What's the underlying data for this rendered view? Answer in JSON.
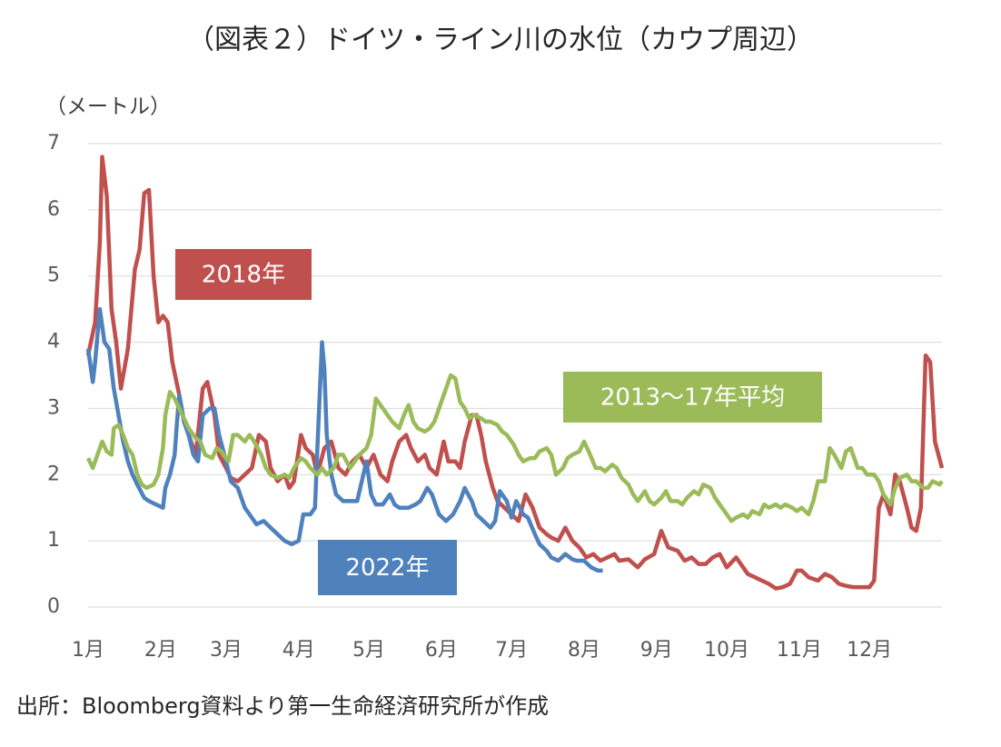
{
  "chart_data": {
    "type": "line",
    "title": "（図表２）ドイツ・ライン川の水位（カウプ周辺）",
    "y_label": "（メートル）",
    "source": "出所：Bloomberg資料より第一生命経済研究所が作成",
    "xlim": [
      1,
      366
    ],
    "xticks": [
      {
        "value": 1,
        "label": "1月"
      },
      {
        "value": 32,
        "label": "2月"
      },
      {
        "value": 60,
        "label": "3月"
      },
      {
        "value": 91,
        "label": "4月"
      },
      {
        "value": 121,
        "label": "5月"
      },
      {
        "value": 152,
        "label": "6月"
      },
      {
        "value": 182,
        "label": "7月"
      },
      {
        "value": 213,
        "label": "8月"
      },
      {
        "value": 244,
        "label": "9月"
      },
      {
        "value": 274,
        "label": "10月"
      },
      {
        "value": 305,
        "label": "11月"
      },
      {
        "value": 335,
        "label": "12月"
      }
    ],
    "ylim": [
      0,
      7
    ],
    "yticks": [
      0,
      1,
      2,
      3,
      4,
      5,
      6,
      7
    ],
    "grid": true,
    "series": [
      {
        "name": "2018年",
        "color": "#c0504d",
        "x": [
          1,
          4,
          6,
          7,
          9,
          11,
          13,
          15,
          18,
          21,
          23,
          25,
          27,
          29,
          31,
          33,
          35,
          37,
          40,
          42,
          45,
          47,
          50,
          52,
          55,
          57,
          60,
          62,
          65,
          68,
          71,
          74,
          77,
          79,
          82,
          85,
          87,
          89,
          92,
          94,
          97,
          99,
          102,
          105,
          108,
          111,
          114,
          117,
          120,
          123,
          126,
          129,
          131,
          134,
          137,
          139,
          142,
          145,
          147,
          150,
          153,
          155,
          158,
          160,
          162,
          165,
          167,
          169,
          171,
          174,
          176,
          179,
          182,
          185,
          188,
          191,
          194,
          197,
          199,
          202,
          205,
          208,
          211,
          214,
          217,
          220,
          223,
          226,
          228,
          232,
          236,
          239,
          243,
          246,
          249,
          253,
          256,
          259,
          262,
          265,
          268,
          271,
          274,
          278,
          280,
          283,
          286,
          289,
          292,
          295,
          298,
          301,
          304,
          306,
          309,
          313,
          316,
          319,
          322,
          325,
          328,
          331,
          335,
          337,
          339,
          341,
          344,
          346,
          348,
          351,
          353,
          355,
          357,
          359,
          361,
          363,
          366
        ],
        "values": [
          3.8,
          4.3,
          5.5,
          6.8,
          6.2,
          4.5,
          4.0,
          3.3,
          3.9,
          5.1,
          5.4,
          6.25,
          6.3,
          5.0,
          4.3,
          4.4,
          4.3,
          3.7,
          3.2,
          2.8,
          2.5,
          2.3,
          3.3,
          3.4,
          2.9,
          2.3,
          2.1,
          1.95,
          1.9,
          2.0,
          2.1,
          2.6,
          2.5,
          2.1,
          1.9,
          2.0,
          1.8,
          1.9,
          2.6,
          2.4,
          2.3,
          2.0,
          2.4,
          2.5,
          2.1,
          2.0,
          2.2,
          2.3,
          2.1,
          2.3,
          2.0,
          1.9,
          2.2,
          2.5,
          2.6,
          2.4,
          2.2,
          2.3,
          2.1,
          2.0,
          2.5,
          2.2,
          2.2,
          2.1,
          2.5,
          2.9,
          2.9,
          2.6,
          2.2,
          1.8,
          1.6,
          1.5,
          1.4,
          1.3,
          1.7,
          1.5,
          1.2,
          1.1,
          1.05,
          1.0,
          1.2,
          1.0,
          0.9,
          0.75,
          0.8,
          0.7,
          0.75,
          0.8,
          0.7,
          0.72,
          0.6,
          0.72,
          0.8,
          1.15,
          0.9,
          0.85,
          0.7,
          0.75,
          0.65,
          0.65,
          0.75,
          0.8,
          0.6,
          0.75,
          0.65,
          0.5,
          0.45,
          0.4,
          0.35,
          0.28,
          0.3,
          0.35,
          0.55,
          0.55,
          0.45,
          0.4,
          0.5,
          0.45,
          0.35,
          0.32,
          0.3,
          0.3,
          0.3,
          0.4,
          1.5,
          1.7,
          1.4,
          2.0,
          1.9,
          1.5,
          1.2,
          1.15,
          1.5,
          3.8,
          3.7,
          2.5,
          2.1
        ]
      },
      {
        "name": "2022年",
        "color": "#4f81bd",
        "x": [
          1,
          3,
          4,
          6,
          8,
          10,
          12,
          14,
          16,
          18,
          20,
          22,
          25,
          27,
          30,
          33,
          34,
          36,
          38,
          39,
          40,
          42,
          44,
          46,
          48,
          50,
          53,
          55,
          57,
          60,
          62,
          65,
          68,
          70,
          73,
          76,
          79,
          82,
          85,
          88,
          91,
          93,
          96,
          98,
          99,
          101,
          102,
          103,
          105,
          107,
          110,
          113,
          116,
          118,
          120,
          122,
          124,
          127,
          130,
          132,
          134,
          138,
          141,
          143,
          146,
          148,
          151,
          154,
          157,
          160,
          162,
          165,
          167,
          170,
          173,
          175,
          177,
          180,
          182,
          184,
          187,
          189,
          192,
          194,
          197,
          199,
          202,
          205,
          208,
          210,
          213,
          216,
          219,
          221
        ],
        "values": [
          3.9,
          3.4,
          3.7,
          4.5,
          4.0,
          3.9,
          3.3,
          2.9,
          2.5,
          2.2,
          2.0,
          1.85,
          1.65,
          1.6,
          1.55,
          1.5,
          1.8,
          2.0,
          2.3,
          2.8,
          3.2,
          2.8,
          2.6,
          2.3,
          2.2,
          2.9,
          3.0,
          3.0,
          2.6,
          2.2,
          1.9,
          1.8,
          1.5,
          1.4,
          1.25,
          1.3,
          1.2,
          1.1,
          1.0,
          0.95,
          1.0,
          1.4,
          1.4,
          1.5,
          2.4,
          4.0,
          3.6,
          2.6,
          2.0,
          1.7,
          1.6,
          1.6,
          1.6,
          1.9,
          2.2,
          1.7,
          1.55,
          1.55,
          1.7,
          1.55,
          1.5,
          1.5,
          1.55,
          1.6,
          1.8,
          1.7,
          1.4,
          1.3,
          1.4,
          1.6,
          1.8,
          1.6,
          1.4,
          1.3,
          1.2,
          1.3,
          1.75,
          1.6,
          1.35,
          1.6,
          1.4,
          1.35,
          1.1,
          0.95,
          0.85,
          0.75,
          0.7,
          0.8,
          0.72,
          0.7,
          0.7,
          0.6,
          0.55,
          0.55
        ]
      },
      {
        "name": "2013〜17年平均",
        "color": "#9bbb59",
        "x": [
          1,
          3,
          5,
          7,
          9,
          11,
          12,
          14,
          16,
          18,
          20,
          22,
          24,
          26,
          29,
          31,
          33,
          34,
          36,
          38,
          40,
          42,
          44,
          47,
          49,
          51,
          54,
          56,
          58,
          61,
          63,
          65,
          68,
          70,
          72,
          75,
          77,
          79,
          82,
          85,
          87,
          89,
          92,
          94,
          96,
          99,
          101,
          103,
          106,
          108,
          110,
          113,
          115,
          117,
          120,
          122,
          124,
          127,
          129,
          131,
          134,
          136,
          138,
          140,
          142,
          145,
          147,
          149,
          152,
          154,
          156,
          158,
          160,
          162,
          164,
          166,
          169,
          171,
          173,
          176,
          178,
          180,
          183,
          185,
          187,
          190,
          192,
          194,
          197,
          199,
          201,
          204,
          206,
          208,
          211,
          213,
          215,
          218,
          220,
          222,
          225,
          227,
          229,
          232,
          234,
          236,
          239,
          241,
          243,
          246,
          248,
          250,
          253,
          255,
          257,
          260,
          262,
          264,
          267,
          269,
          271,
          274,
          276,
          278,
          281,
          283,
          285,
          288,
          290,
          292,
          295,
          297,
          299,
          302,
          304,
          306,
          309,
          311,
          313,
          316,
          318,
          320,
          323,
          325,
          327,
          330,
          332,
          334,
          337,
          339,
          341,
          344,
          346,
          348,
          351,
          353,
          355,
          358,
          360,
          362,
          365,
          366
        ],
        "values": [
          2.25,
          2.1,
          2.3,
          2.5,
          2.35,
          2.3,
          2.7,
          2.75,
          2.6,
          2.4,
          2.3,
          2.0,
          1.85,
          1.8,
          1.85,
          2.0,
          2.4,
          2.9,
          3.25,
          3.15,
          3.0,
          2.85,
          2.7,
          2.55,
          2.5,
          2.3,
          2.25,
          2.4,
          2.35,
          2.2,
          2.6,
          2.6,
          2.5,
          2.6,
          2.5,
          2.3,
          2.1,
          2.0,
          1.95,
          2.0,
          1.95,
          2.1,
          2.25,
          2.2,
          2.1,
          2.0,
          2.1,
          2.0,
          2.1,
          2.3,
          2.3,
          2.1,
          2.2,
          2.3,
          2.4,
          2.6,
          3.15,
          3.0,
          2.9,
          2.8,
          2.7,
          2.9,
          3.05,
          2.8,
          2.7,
          2.65,
          2.7,
          2.8,
          3.1,
          3.3,
          3.5,
          3.45,
          3.1,
          3.0,
          2.85,
          2.9,
          2.85,
          2.8,
          2.8,
          2.75,
          2.65,
          2.6,
          2.45,
          2.3,
          2.2,
          2.25,
          2.25,
          2.35,
          2.4,
          2.3,
          2.0,
          2.1,
          2.25,
          2.3,
          2.35,
          2.5,
          2.35,
          2.1,
          2.1,
          2.05,
          2.15,
          2.1,
          1.95,
          1.85,
          1.7,
          1.6,
          1.75,
          1.6,
          1.55,
          1.65,
          1.75,
          1.6,
          1.6,
          1.55,
          1.65,
          1.75,
          1.7,
          1.85,
          1.8,
          1.65,
          1.55,
          1.4,
          1.3,
          1.35,
          1.4,
          1.35,
          1.45,
          1.4,
          1.55,
          1.5,
          1.55,
          1.5,
          1.55,
          1.5,
          1.45,
          1.5,
          1.4,
          1.6,
          1.9,
          1.9,
          2.4,
          2.3,
          2.1,
          2.35,
          2.4,
          2.1,
          2.1,
          2.0,
          2.0,
          1.9,
          1.7,
          1.55,
          1.8,
          1.95,
          2.0,
          1.9,
          1.9,
          1.8,
          1.8,
          1.9,
          1.85,
          1.9
        ]
      }
    ]
  }
}
